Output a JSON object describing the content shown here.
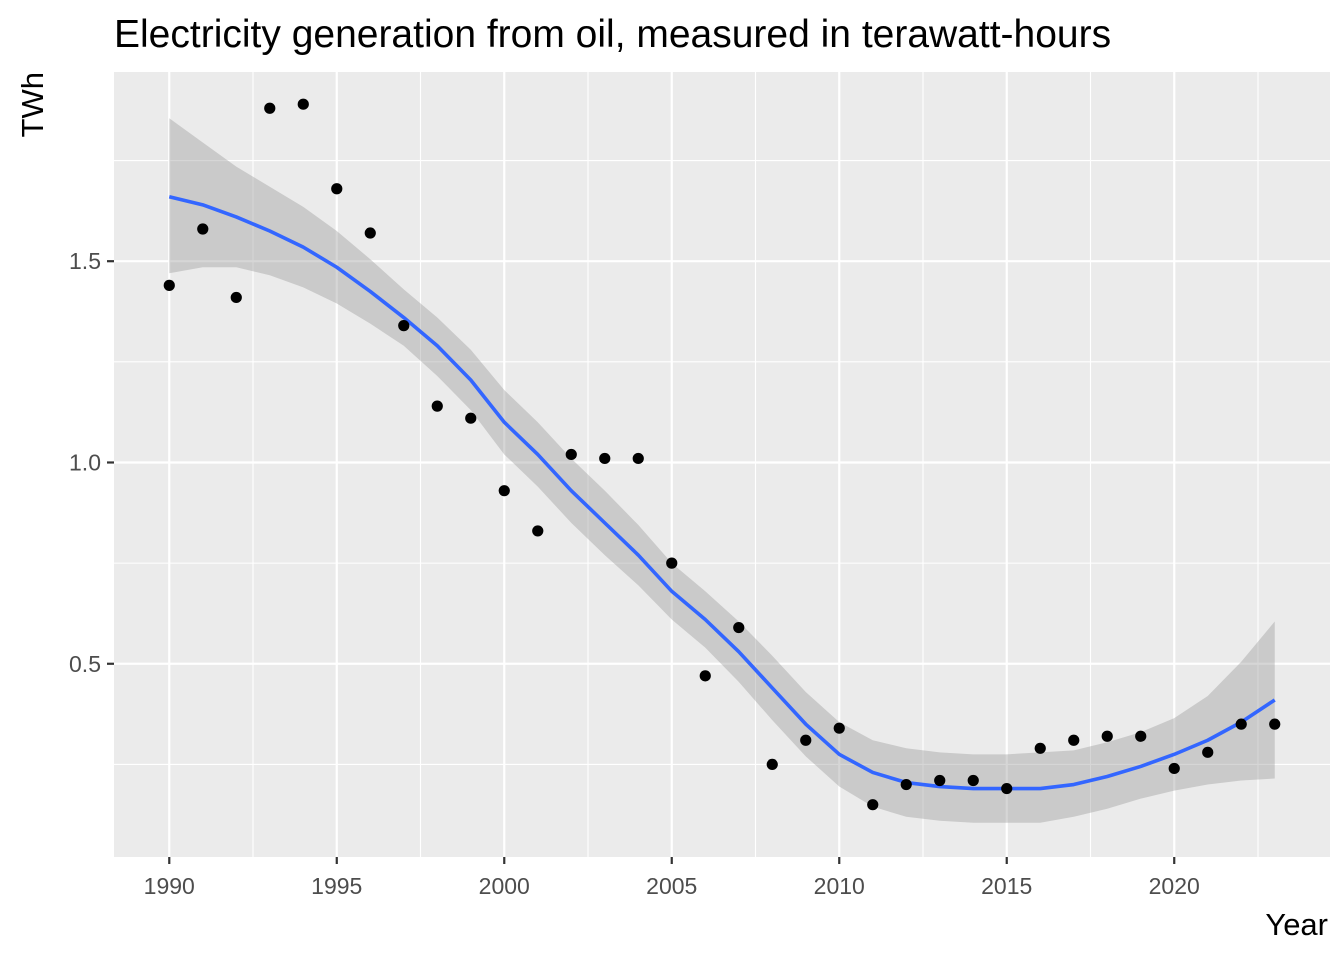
{
  "chart_data": {
    "type": "scatter",
    "title": "Electricity generation from oil, measured in terawatt-hours",
    "xlabel": "Year",
    "ylabel": "TWh",
    "xlim": [
      1988.35,
      2024.65
    ],
    "ylim": [
      0.02,
      1.97
    ],
    "x_ticks": [
      1990,
      1995,
      2000,
      2005,
      2010,
      2015,
      2020
    ],
    "x_tick_labels": [
      "1990",
      "1995",
      "2000",
      "2005",
      "2010",
      "2015",
      "2020"
    ],
    "y_ticks": [
      0.5,
      1.0,
      1.5
    ],
    "y_tick_labels": [
      "0.5",
      "1.0",
      "1.5"
    ],
    "grid": true,
    "legend": "none",
    "colors": {
      "panel_background": "#ebebeb",
      "grid_major": "#ffffff",
      "points": "#000000",
      "smooth_line": "#3366ff",
      "confidence_band": "#999999"
    },
    "series": [
      {
        "type": "scatter",
        "x": [
          1990,
          1991,
          1992,
          1993,
          1994,
          1995,
          1996,
          1997,
          1998,
          1999,
          2000,
          2001,
          2002,
          2003,
          2004,
          2005,
          2006,
          2007,
          2008,
          2009,
          2010,
          2011,
          2012,
          2013,
          2014,
          2015,
          2016,
          2017,
          2018,
          2019,
          2020,
          2021,
          2022,
          2023
        ],
        "y": [
          1.44,
          1.58,
          1.41,
          1.88,
          1.89,
          1.68,
          1.57,
          1.34,
          1.14,
          1.11,
          0.93,
          0.83,
          1.02,
          1.01,
          1.01,
          0.75,
          0.47,
          0.59,
          0.25,
          0.31,
          0.34,
          0.15,
          0.2,
          0.21,
          0.21,
          0.19,
          0.29,
          0.31,
          0.32,
          0.32,
          0.24,
          0.28,
          0.35,
          0.35
        ]
      },
      {
        "type": "smooth",
        "x": [
          1990,
          1991,
          1992,
          1993,
          1994,
          1995,
          1996,
          1997,
          1998,
          1999,
          2000,
          2001,
          2002,
          2003,
          2004,
          2005,
          2006,
          2007,
          2008,
          2009,
          2010,
          2011,
          2012,
          2013,
          2014,
          2015,
          2016,
          2017,
          2018,
          2019,
          2020,
          2021,
          2022,
          2023
        ],
        "y": [
          1.66,
          1.64,
          1.61,
          1.575,
          1.535,
          1.485,
          1.425,
          1.36,
          1.29,
          1.205,
          1.1,
          1.02,
          0.93,
          0.85,
          0.77,
          0.68,
          0.61,
          0.53,
          0.44,
          0.35,
          0.275,
          0.23,
          0.205,
          0.195,
          0.19,
          0.19,
          0.19,
          0.2,
          0.22,
          0.245,
          0.275,
          0.31,
          0.355,
          0.41
        ],
        "ci_low": [
          1.47,
          1.485,
          1.485,
          1.465,
          1.435,
          1.395,
          1.345,
          1.29,
          1.215,
          1.13,
          1.02,
          0.94,
          0.85,
          0.77,
          0.695,
          0.61,
          0.54,
          0.455,
          0.36,
          0.27,
          0.195,
          0.145,
          0.12,
          0.11,
          0.105,
          0.105,
          0.105,
          0.12,
          0.14,
          0.165,
          0.185,
          0.2,
          0.21,
          0.215
        ],
        "ci_high": [
          1.855,
          1.795,
          1.735,
          1.685,
          1.635,
          1.575,
          1.505,
          1.43,
          1.36,
          1.28,
          1.18,
          1.1,
          1.01,
          0.93,
          0.845,
          0.75,
          0.68,
          0.605,
          0.52,
          0.43,
          0.355,
          0.31,
          0.29,
          0.28,
          0.275,
          0.275,
          0.28,
          0.285,
          0.305,
          0.33,
          0.365,
          0.42,
          0.505,
          0.605
        ]
      }
    ]
  }
}
